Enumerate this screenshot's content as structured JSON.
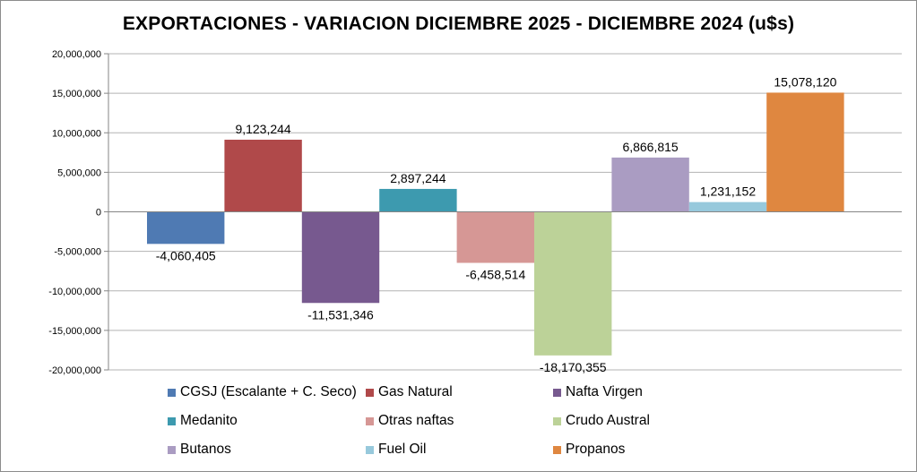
{
  "chart_data": {
    "type": "bar",
    "title": "EXPORTACIONES - VARIACION DICIEMBRE 2025 - DICIEMBRE 2024 (u$s)",
    "xlabel": "",
    "ylabel": "",
    "ylim": [
      -20000000,
      20000000
    ],
    "grid": true,
    "legend_position": "bottom",
    "y_ticks": [
      20000000,
      15000000,
      10000000,
      5000000,
      0,
      -5000000,
      -10000000,
      -15000000,
      -20000000
    ],
    "y_tick_labels": [
      "20,000,000",
      "15,000,000",
      "10,000,000",
      "5,000,000",
      "0",
      "-5,000,000",
      "-10,000,000",
      "-15,000,000",
      "-20,000,000"
    ],
    "series": [
      {
        "name": "CGSJ (Escalante + C. Seco)",
        "value": -4060405,
        "label": "-4,060,405",
        "color": "#4f7ab3"
      },
      {
        "name": "Gas Natural",
        "value": 9123244,
        "label": "9,123,244",
        "color": "#b0494a"
      },
      {
        "name": "Nafta Virgen",
        "value": -11531346,
        "label": "-11,531,346",
        "color": "#77598f"
      },
      {
        "name": "Medanito",
        "value": 2897244,
        "label": "2,897,244",
        "color": "#3d9aaf"
      },
      {
        "name": "Otras naftas",
        "value": -6458514,
        "label": "-6,458,514",
        "color": "#d69795"
      },
      {
        "name": "Crudo Austral",
        "value": -18170355,
        "label": "-18,170,355",
        "color": "#bcd298"
      },
      {
        "name": "Butanos",
        "value": 6866815,
        "label": "6,866,815",
        "color": "#aa9cc2"
      },
      {
        "name": "Fuel Oil",
        "value": 1231152,
        "label": "1,231,152",
        "color": "#97c9dc"
      },
      {
        "name": "Propanos",
        "value": 15078120,
        "label": "15,078,120",
        "color": "#df8740"
      }
    ]
  }
}
